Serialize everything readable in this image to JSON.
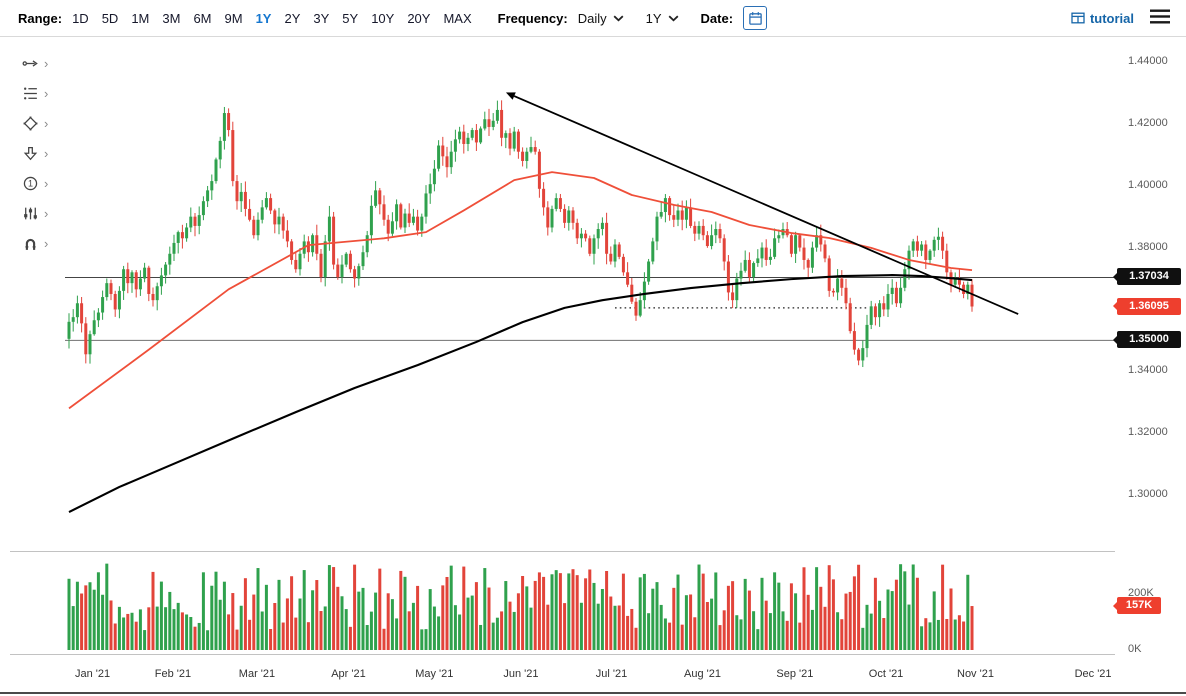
{
  "toolbar": {
    "range_label": "Range:",
    "ranges": [
      "1D",
      "5D",
      "1M",
      "3M",
      "6M",
      "9M",
      "1Y",
      "2Y",
      "3Y",
      "5Y",
      "10Y",
      "20Y",
      "MAX"
    ],
    "active_range": "1Y",
    "frequency_label": "Frequency:",
    "frequency_value": "Daily",
    "period_value": "1Y",
    "date_label": "Date:",
    "brand_label": "tutorial"
  },
  "sidebar": {
    "tools": [
      {
        "name": "trendline-tool"
      },
      {
        "name": "fibonacci-levels-tool"
      },
      {
        "name": "shapes-tool"
      },
      {
        "name": "arrow-marker-tool"
      },
      {
        "name": "numbered-annotation-tool"
      },
      {
        "name": "indicators-tool"
      },
      {
        "name": "magnet-snap-tool"
      }
    ]
  },
  "chart_data": {
    "type": "candlestick_with_volume",
    "frequency": "Daily",
    "range": "1Y",
    "y_axis": {
      "ticks": [
        "1.44000",
        "1.42000",
        "1.40000",
        "1.38000",
        "1.36000",
        "1.34000",
        "1.32000",
        "1.30000"
      ]
    },
    "x_axis": {
      "months": [
        {
          "label": "Jan '21",
          "i": 0
        },
        {
          "label": "Feb '21",
          "i": 19
        },
        {
          "label": "Mar '21",
          "i": 39
        },
        {
          "label": "Apr '21",
          "i": 61
        },
        {
          "label": "May '21",
          "i": 81
        },
        {
          "label": "Jun '21",
          "i": 102
        },
        {
          "label": "Jul '21",
          "i": 124
        },
        {
          "label": "Aug '21",
          "i": 145
        },
        {
          "label": "Sep '21",
          "i": 167
        },
        {
          "label": "Oct '21",
          "i": 189
        },
        {
          "label": "Nov '21",
          "i": 210
        },
        {
          "label": "Dec '21",
          "i": 238
        }
      ]
    },
    "price_lines": [
      {
        "price": 1.37034,
        "label": "1.37034",
        "color": "#444444"
      },
      {
        "price": 1.35,
        "label": "1.35000",
        "color": "#707070"
      }
    ],
    "support_dotted": {
      "i1": 130,
      "i2": 190,
      "price": 1.3605
    },
    "trendline": {
      "i1": 106,
      "p1": 1.429,
      "i2": 226,
      "p2": 1.3585
    },
    "last_price": {
      "value": 1.36095,
      "label": "1.36095"
    },
    "candles": {
      "first_open": 1.3505,
      "closes": [
        1.356,
        1.3575,
        1.362,
        1.3555,
        1.3455,
        1.352,
        1.3565,
        1.359,
        1.364,
        1.3685,
        1.365,
        1.36,
        1.366,
        1.373,
        1.3685,
        1.372,
        1.3665,
        1.37,
        1.3735,
        1.365,
        1.363,
        1.3675,
        1.371,
        1.3745,
        1.378,
        1.3815,
        1.385,
        1.383,
        1.3865,
        1.39,
        1.387,
        1.3905,
        1.395,
        1.3985,
        1.4015,
        1.4085,
        1.4145,
        1.4235,
        1.418,
        1.4015,
        1.395,
        1.398,
        1.3925,
        1.389,
        1.384,
        1.389,
        1.393,
        1.396,
        1.392,
        1.3875,
        1.39,
        1.3855,
        1.382,
        1.376,
        1.373,
        1.378,
        1.382,
        1.3785,
        1.384,
        1.378,
        1.3705,
        1.382,
        1.39,
        1.3745,
        1.3705,
        1.3745,
        1.378,
        1.373,
        1.37,
        1.374,
        1.3785,
        1.384,
        1.3935,
        1.3985,
        1.394,
        1.389,
        1.3845,
        1.3885,
        1.394,
        1.3865,
        1.391,
        1.388,
        1.39,
        1.3855,
        1.39,
        1.3975,
        1.4005,
        1.4055,
        1.413,
        1.4095,
        1.406,
        1.411,
        1.415,
        1.4175,
        1.4135,
        1.4155,
        1.418,
        1.414,
        1.4185,
        1.4215,
        1.419,
        1.421,
        1.4245,
        1.4155,
        1.417,
        1.412,
        1.4175,
        1.411,
        1.408,
        1.411,
        1.4125,
        1.411,
        1.399,
        1.393,
        1.3865,
        1.3925,
        1.396,
        1.3925,
        1.388,
        1.392,
        1.388,
        1.383,
        1.3845,
        1.383,
        1.378,
        1.383,
        1.386,
        1.388,
        1.378,
        1.3755,
        1.381,
        1.377,
        1.372,
        1.368,
        1.3625,
        1.358,
        1.363,
        1.369,
        1.3755,
        1.382,
        1.39,
        1.3915,
        1.396,
        1.3905,
        1.389,
        1.392,
        1.389,
        1.393,
        1.387,
        1.3845,
        1.387,
        1.384,
        1.3805,
        1.384,
        1.386,
        1.383,
        1.3755,
        1.3655,
        1.363,
        1.37,
        1.3725,
        1.376,
        1.3705,
        1.375,
        1.3765,
        1.38,
        1.376,
        1.377,
        1.383,
        1.384,
        1.386,
        1.384,
        1.378,
        1.384,
        1.38,
        1.376,
        1.3735,
        1.38,
        1.384,
        1.381,
        1.3765,
        1.366,
        1.3655,
        1.37,
        1.367,
        1.362,
        1.353,
        1.347,
        1.3435,
        1.3475,
        1.355,
        1.361,
        1.3575,
        1.362,
        1.36,
        1.365,
        1.367,
        1.362,
        1.367,
        1.373,
        1.379,
        1.382,
        1.379,
        1.381,
        1.376,
        1.379,
        1.3825,
        1.3835,
        1.379,
        1.372,
        1.368,
        1.37,
        1.368,
        1.365,
        1.368,
        1.36095
      ]
    },
    "ma_fast_points": [
      [
        0,
        1.328
      ],
      [
        19,
        1.347
      ],
      [
        38,
        1.3665
      ],
      [
        57,
        1.3808
      ],
      [
        75,
        1.383
      ],
      [
        85,
        1.385
      ],
      [
        94,
        1.392
      ],
      [
        106,
        1.4018
      ],
      [
        115,
        1.4044
      ],
      [
        125,
        1.4025
      ],
      [
        134,
        1.397
      ],
      [
        144,
        1.3938
      ],
      [
        153,
        1.3915
      ],
      [
        162,
        1.3873
      ],
      [
        172,
        1.3847
      ],
      [
        181,
        1.3831
      ],
      [
        191,
        1.3799
      ],
      [
        200,
        1.376
      ],
      [
        210,
        1.3734
      ],
      [
        215,
        1.3727
      ]
    ],
    "ma_slow_points": [
      [
        0,
        1.2945
      ],
      [
        12,
        1.3026
      ],
      [
        26,
        1.3107
      ],
      [
        40,
        1.3188
      ],
      [
        54,
        1.3268
      ],
      [
        68,
        1.3346
      ],
      [
        83,
        1.342
      ],
      [
        97,
        1.3495
      ],
      [
        108,
        1.3559
      ],
      [
        118,
        1.3605
      ],
      [
        127,
        1.363
      ],
      [
        137,
        1.365
      ],
      [
        148,
        1.3669
      ],
      [
        160,
        1.3685
      ],
      [
        172,
        1.3698
      ],
      [
        184,
        1.3708
      ],
      [
        196,
        1.3711
      ],
      [
        203,
        1.3708
      ],
      [
        210,
        1.3701
      ],
      [
        215,
        1.3695
      ]
    ],
    "volume": {
      "axis_ticks": [
        "200K",
        "0K"
      ],
      "last_label": "157K",
      "last_value_k": 157,
      "min_k": 70,
      "max_k": 310
    },
    "colors": {
      "up": "#2fa14d",
      "down": "#e2443a",
      "ma_fast": "#ef4f39",
      "ma_slow": "#000000",
      "badge_black": "#101010",
      "badge_red": "#ee3f2e",
      "active_range_blue": "#1677cf",
      "brand_blue": "#1565a8"
    }
  }
}
